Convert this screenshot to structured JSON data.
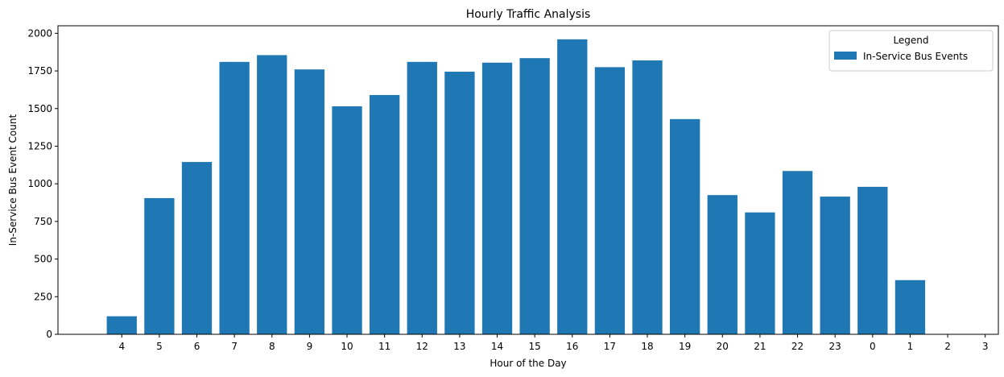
{
  "chart_data": {
    "type": "bar",
    "title": "Hourly Traffic Analysis",
    "xlabel": "Hour of the Day",
    "ylabel": "In-Service Bus Event Count",
    "ylim": [
      0,
      2050
    ],
    "yticks": [
      0,
      250,
      500,
      750,
      1000,
      1250,
      1500,
      1750,
      2000
    ],
    "categories": [
      "4",
      "5",
      "6",
      "7",
      "8",
      "9",
      "10",
      "11",
      "12",
      "13",
      "14",
      "15",
      "16",
      "17",
      "18",
      "19",
      "20",
      "21",
      "22",
      "23",
      "0",
      "1",
      "2",
      "3"
    ],
    "series": [
      {
        "name": "In-Service Bus Events",
        "color": "#1f77b4",
        "values": [
          120,
          905,
          1145,
          1810,
          1855,
          1760,
          1515,
          1590,
          1810,
          1745,
          1805,
          1835,
          1960,
          1775,
          1820,
          1430,
          925,
          810,
          1085,
          915,
          980,
          360,
          0,
          0
        ]
      }
    ],
    "legend": {
      "title": "Legend",
      "placement": "top-right"
    },
    "grid": false
  }
}
